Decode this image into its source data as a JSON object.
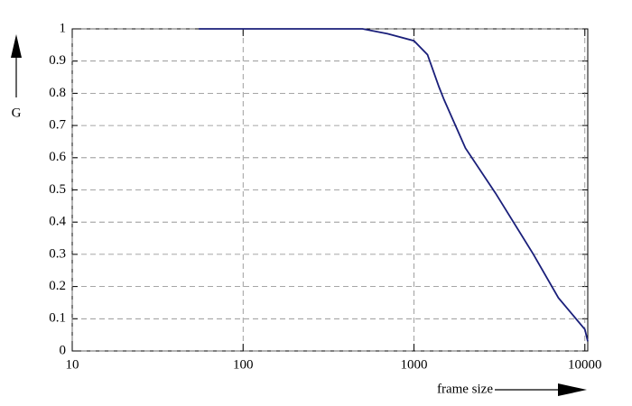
{
  "chart_data": {
    "type": "line",
    "x_label": "frame size",
    "y_label": "G",
    "xscale": "log",
    "grid": true,
    "xlim": [
      10,
      10400
    ],
    "ylim": [
      0,
      1
    ],
    "xticks": [
      10,
      100,
      1000,
      10000
    ],
    "yticks": [
      0,
      0.1,
      0.2,
      0.3,
      0.4,
      0.5,
      0.6,
      0.7,
      0.8,
      0.9,
      1
    ],
    "series": [
      {
        "name": "G",
        "color": "#1a1f7a",
        "x": [
          55,
          100,
          200,
          500,
          700,
          1000,
          1200,
          1400,
          1500,
          2000,
          3000,
          5000,
          7000,
          10000,
          10400
        ],
        "values": [
          1.0,
          1.0,
          1.0,
          1.0,
          0.985,
          0.963,
          0.92,
          0.82,
          0.78,
          0.63,
          0.49,
          0.3,
          0.165,
          0.067,
          0.03
        ]
      }
    ]
  }
}
